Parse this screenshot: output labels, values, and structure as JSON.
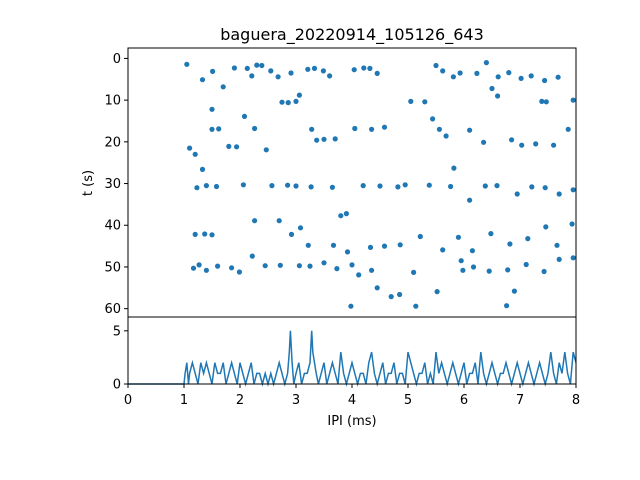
{
  "chart_data": [
    {
      "type": "scatter",
      "title": "baguera_20220914_105126_643",
      "xlabel": "",
      "ylabel": "t (s)",
      "xlim": [
        0,
        8
      ],
      "ylim": [
        62,
        -2.5
      ],
      "y_inverted": true,
      "yticks": [
        0,
        10,
        20,
        30,
        40,
        50,
        60
      ],
      "grid": false,
      "series": [
        {
          "color": "#1f77b4",
          "points": [
            [
              1.05,
              1.4
            ],
            [
              1.33,
              5.1
            ],
            [
              1.51,
              3.1
            ],
            [
              1.7,
              6.8
            ],
            [
              1.9,
              2.3
            ],
            [
              2.13,
              2.4
            ],
            [
              2.21,
              4.2
            ],
            [
              2.3,
              1.6
            ],
            [
              2.39,
              1.7
            ],
            [
              2.55,
              3.0
            ],
            [
              2.68,
              4.4
            ],
            [
              2.91,
              3.5
            ],
            [
              3.21,
              2.6
            ],
            [
              3.33,
              2.4
            ],
            [
              3.49,
              3.0
            ],
            [
              3.6,
              4.2
            ],
            [
              4.04,
              2.7
            ],
            [
              4.21,
              2.3
            ],
            [
              4.32,
              2.4
            ],
            [
              4.45,
              3.6
            ],
            [
              5.5,
              1.7
            ],
            [
              5.62,
              3.0
            ],
            [
              5.81,
              4.4
            ],
            [
              5.93,
              3.5
            ],
            [
              6.23,
              3.6
            ],
            [
              6.4,
              1.0
            ],
            [
              6.5,
              7.2
            ],
            [
              6.61,
              4.4
            ],
            [
              6.8,
              3.4
            ],
            [
              7.02,
              4.8
            ],
            [
              7.2,
              4.2
            ],
            [
              7.44,
              5.3
            ],
            [
              7.68,
              4.5
            ],
            [
              1.1,
              21.5
            ],
            [
              1.2,
              23.0
            ],
            [
              1.33,
              26.6
            ],
            [
              1.5,
              12.2
            ],
            [
              1.5,
              17.0
            ],
            [
              1.62,
              16.9
            ],
            [
              1.8,
              21.1
            ],
            [
              1.94,
              21.2
            ],
            [
              2.08,
              13.9
            ],
            [
              2.26,
              16.8
            ],
            [
              2.47,
              21.9
            ],
            [
              2.75,
              10.5
            ],
            [
              2.86,
              10.6
            ],
            [
              3.0,
              10.3
            ],
            [
              3.06,
              8.8
            ],
            [
              3.28,
              17.0
            ],
            [
              3.37,
              19.6
            ],
            [
              3.5,
              19.4
            ],
            [
              3.7,
              19.3
            ],
            [
              4.05,
              16.8
            ],
            [
              4.35,
              17.0
            ],
            [
              4.58,
              16.5
            ],
            [
              5.05,
              10.3
            ],
            [
              5.3,
              10.4
            ],
            [
              5.44,
              14.5
            ],
            [
              5.56,
              17.0
            ],
            [
              5.68,
              18.6
            ],
            [
              5.82,
              26.3
            ],
            [
              6.1,
              17.2
            ],
            [
              6.35,
              20.1
            ],
            [
              6.6,
              9.0
            ],
            [
              6.85,
              19.5
            ],
            [
              7.03,
              20.8
            ],
            [
              7.28,
              20.5
            ],
            [
              7.39,
              10.3
            ],
            [
              7.47,
              10.4
            ],
            [
              7.6,
              20.8
            ],
            [
              7.86,
              17.0
            ],
            [
              7.95,
              10.0
            ],
            [
              1.23,
              31.0
            ],
            [
              1.4,
              30.5
            ],
            [
              1.58,
              30.7
            ],
            [
              2.06,
              30.3
            ],
            [
              2.57,
              30.5
            ],
            [
              2.85,
              30.4
            ],
            [
              3.0,
              30.6
            ],
            [
              3.27,
              30.8
            ],
            [
              3.65,
              30.9
            ],
            [
              3.8,
              37.7
            ],
            [
              3.9,
              37.2
            ],
            [
              4.2,
              30.5
            ],
            [
              4.5,
              30.6
            ],
            [
              4.82,
              30.8
            ],
            [
              4.95,
              30.3
            ],
            [
              5.38,
              30.4
            ],
            [
              5.76,
              30.7
            ],
            [
              6.1,
              34.0
            ],
            [
              6.38,
              30.6
            ],
            [
              6.59,
              30.5
            ],
            [
              6.95,
              32.5
            ],
            [
              7.21,
              30.8
            ],
            [
              7.45,
              31.0
            ],
            [
              7.7,
              32.5
            ],
            [
              7.95,
              31.5
            ],
            [
              1.2,
              42.2
            ],
            [
              1.37,
              42.1
            ],
            [
              1.5,
              42.3
            ],
            [
              2.26,
              38.9
            ],
            [
              2.7,
              38.9
            ],
            [
              2.92,
              42.2
            ],
            [
              3.08,
              40.6
            ],
            [
              3.22,
              44.8
            ],
            [
              3.67,
              44.8
            ],
            [
              3.92,
              46.4
            ],
            [
              4.33,
              45.3
            ],
            [
              4.58,
              45.0
            ],
            [
              4.86,
              44.7
            ],
            [
              5.22,
              42.7
            ],
            [
              5.62,
              45.9
            ],
            [
              5.9,
              42.9
            ],
            [
              6.15,
              46.1
            ],
            [
              6.48,
              42.0
            ],
            [
              6.82,
              44.5
            ],
            [
              7.14,
              43.2
            ],
            [
              7.46,
              40.4
            ],
            [
              7.66,
              44.8
            ],
            [
              7.93,
              39.7
            ],
            [
              1.17,
              50.3
            ],
            [
              1.27,
              49.5
            ],
            [
              1.4,
              50.8
            ],
            [
              1.6,
              49.8
            ],
            [
              1.85,
              50.2
            ],
            [
              1.99,
              51.2
            ],
            [
              2.22,
              47.4
            ],
            [
              2.45,
              49.7
            ],
            [
              2.72,
              49.6
            ],
            [
              3.06,
              49.7
            ],
            [
              3.25,
              49.8
            ],
            [
              3.5,
              49.0
            ],
            [
              3.73,
              50.4
            ],
            [
              4.0,
              49.5
            ],
            [
              4.35,
              50.8
            ],
            [
              4.45,
              55.0
            ],
            [
              4.85,
              56.6
            ],
            [
              5.1,
              51.3
            ],
            [
              5.52,
              55.9
            ],
            [
              5.95,
              48.5
            ],
            [
              6.17,
              50.0
            ],
            [
              6.45,
              51.0
            ],
            [
              6.78,
              50.7
            ],
            [
              7.11,
              49.4
            ],
            [
              7.43,
              51.1
            ],
            [
              7.7,
              48.2
            ],
            [
              7.95,
              47.8
            ],
            [
              3.98,
              59.4
            ],
            [
              5.14,
              59.4
            ],
            [
              6.76,
              59.3
            ],
            [
              4.7,
              57.1
            ],
            [
              6.9,
              55.8
            ],
            [
              5.98,
              50.8
            ],
            [
              4.12,
              51.9
            ]
          ]
        }
      ]
    },
    {
      "type": "line",
      "xlabel": "IPI (ms)",
      "ylabel": "",
      "xlim": [
        0,
        8
      ],
      "ylim": [
        0,
        6.3
      ],
      "xticks": [
        0,
        1,
        2,
        3,
        4,
        5,
        6,
        7,
        8
      ],
      "yticks": [
        0,
        5
      ],
      "grid": false,
      "series": [
        {
          "color": "#1f77b4",
          "x": [
            0,
            0.2,
            0.4,
            0.6,
            0.8,
            1.0,
            1.02,
            1.05,
            1.08,
            1.1,
            1.15,
            1.2,
            1.25,
            1.3,
            1.35,
            1.4,
            1.45,
            1.5,
            1.55,
            1.6,
            1.65,
            1.7,
            1.75,
            1.8,
            1.85,
            1.9,
            1.95,
            2.0,
            2.05,
            2.1,
            2.15,
            2.2,
            2.25,
            2.3,
            2.35,
            2.4,
            2.45,
            2.5,
            2.55,
            2.6,
            2.65,
            2.7,
            2.75,
            2.8,
            2.85,
            2.88,
            2.9,
            2.93,
            2.96,
            3.0,
            3.05,
            3.1,
            3.15,
            3.2,
            3.25,
            3.28,
            3.3,
            3.33,
            3.36,
            3.4,
            3.45,
            3.5,
            3.55,
            3.6,
            3.65,
            3.7,
            3.75,
            3.8,
            3.85,
            3.9,
            3.95,
            4.0,
            4.05,
            4.1,
            4.15,
            4.2,
            4.25,
            4.3,
            4.35,
            4.4,
            4.45,
            4.5,
            4.55,
            4.6,
            4.65,
            4.7,
            4.75,
            4.8,
            4.85,
            4.9,
            4.95,
            5.0,
            5.05,
            5.1,
            5.15,
            5.2,
            5.25,
            5.3,
            5.35,
            5.4,
            5.45,
            5.5,
            5.55,
            5.6,
            5.65,
            5.7,
            5.75,
            5.8,
            5.85,
            5.9,
            5.95,
            6.0,
            6.05,
            6.1,
            6.15,
            6.2,
            6.25,
            6.3,
            6.35,
            6.4,
            6.45,
            6.5,
            6.55,
            6.6,
            6.65,
            6.7,
            6.75,
            6.8,
            6.85,
            6.9,
            6.95,
            7.0,
            7.05,
            7.1,
            7.15,
            7.2,
            7.25,
            7.3,
            7.35,
            7.4,
            7.45,
            7.5,
            7.55,
            7.6,
            7.65,
            7.7,
            7.75,
            7.8,
            7.85,
            7.9,
            7.95,
            8.0
          ],
          "y": [
            0,
            0,
            0,
            0,
            0,
            0,
            1,
            2,
            0,
            1,
            2,
            1,
            0,
            2,
            1,
            2,
            1,
            0,
            2,
            1,
            1,
            2,
            0,
            1,
            2,
            1,
            0,
            2,
            1,
            0,
            1,
            2,
            0,
            1,
            1,
            0,
            1,
            0,
            1,
            0,
            1,
            2,
            1,
            0,
            1,
            3,
            5,
            2,
            0,
            1,
            2,
            0,
            1,
            1,
            2,
            5,
            3,
            2,
            1,
            0,
            1,
            2,
            0,
            1,
            2,
            1,
            0,
            3,
            1,
            0,
            1,
            2,
            1,
            0,
            1,
            1,
            0,
            2,
            3,
            1,
            0,
            1,
            2,
            0,
            1,
            1,
            2,
            0,
            1,
            1,
            0,
            3,
            2,
            1,
            0,
            1,
            1,
            2,
            0,
            1,
            0,
            3,
            1,
            2,
            1,
            0,
            1,
            2,
            1,
            0,
            1,
            2,
            0,
            1,
            1,
            2,
            0,
            3,
            1,
            0,
            1,
            2,
            1,
            0,
            1,
            1,
            2,
            1,
            0,
            1,
            2,
            1,
            0,
            1,
            2,
            1,
            0,
            1,
            2,
            1,
            0,
            1,
            3,
            1,
            0,
            2,
            1,
            3,
            1,
            0,
            3,
            2
          ]
        }
      ]
    }
  ]
}
